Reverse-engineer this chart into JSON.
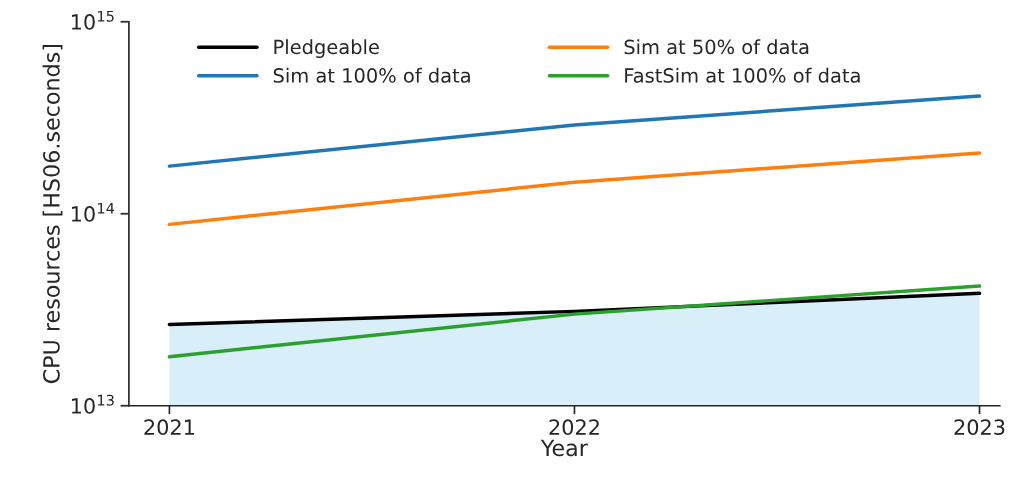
{
  "chart_data": {
    "type": "line",
    "xlabel": "Year",
    "ylabel": "CPU resources [HS06.seconds]",
    "x": [
      2021,
      2022,
      2023
    ],
    "series": [
      {
        "name": "Pledgeable",
        "type": "area",
        "color": "#000000",
        "colors": [
          "#d8eef8",
          "#d8eef8",
          "#d8eef8"
        ],
        "values": [
          26500000000000.0,
          31000000000000.0,
          38500000000000.0
        ]
      },
      {
        "name": "Sim at 100% of data",
        "color": "#1f77b4",
        "values": [
          177000000000000.0,
          290000000000000.0,
          410000000000000.0
        ]
      },
      {
        "name": "Sim at 50% of data",
        "color": "#ff7f0e",
        "values": [
          88000000000000.0,
          146000000000000.0,
          207000000000000.0
        ]
      },
      {
        "name": "FastSim at 100% of data",
        "color": "#2ca02c",
        "values": [
          18000000000000.0,
          30000000000000.0,
          42000000000000.0
        ]
      }
    ],
    "log": "y",
    "xlim": [
      2020.9,
      2023.05
    ],
    "xticks": [
      2021,
      2022,
      2023
    ],
    "ylim": [
      10000000000000.0,
      1000000000000000.0
    ],
    "yticks": [
      {
        "value": 10000000000000.0,
        "label": "10$^{13}$"
      },
      {
        "value": 100000000000000.0,
        "label": "10$^{14}$"
      },
      {
        "value": 1000000000000000.0,
        "label": "10$^{15}$"
      }
    ],
    "legend": "top left",
    "grid": false
  }
}
